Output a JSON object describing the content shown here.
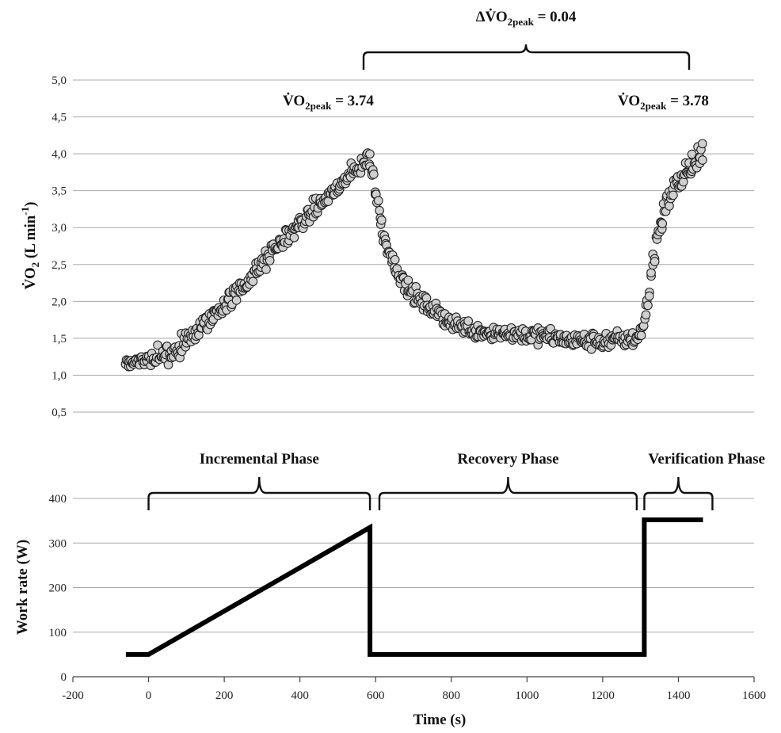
{
  "chart_data": [
    {
      "type": "scatter",
      "ylabel_main": "V̇O",
      "ylabel_sub": "2",
      "ylabel_unit": " (L min",
      "ylabel_exp": "-1",
      "ylabel_close": ")",
      "xlim": [
        -200,
        1600
      ],
      "ylim": [
        0.5,
        5.0
      ],
      "y_ticks": [
        0.5,
        1.0,
        1.5,
        2.0,
        2.5,
        3.0,
        3.5,
        4.0,
        4.5,
        5.0
      ],
      "y_tick_labels": [
        "0,5",
        "1,0",
        "1,5",
        "2,0",
        "2,5",
        "3,0",
        "3,5",
        "4,0",
        "4,5",
        "5,0"
      ],
      "grid": true,
      "annotations": [
        {
          "main": "V̇O",
          "sub": "2peak",
          "rest": " = 3.74"
        },
        {
          "main": "V̇O",
          "sub": "2peak",
          "rest": " = 3.78"
        },
        {
          "main": "ΔV̇O",
          "sub": "2peak",
          "rest": " = 0.04"
        }
      ],
      "profile": [
        [
          -60,
          1.17
        ],
        [
          0,
          1.22
        ],
        [
          60,
          1.28
        ],
        [
          100,
          1.45
        ],
        [
          150,
          1.7
        ],
        [
          200,
          1.95
        ],
        [
          250,
          2.2
        ],
        [
          300,
          2.5
        ],
        [
          350,
          2.8
        ],
        [
          400,
          3.05
        ],
        [
          450,
          3.3
        ],
        [
          500,
          3.55
        ],
        [
          550,
          3.78
        ],
        [
          585,
          3.95
        ],
        [
          600,
          3.5
        ],
        [
          620,
          2.9
        ],
        [
          650,
          2.5
        ],
        [
          680,
          2.2
        ],
        [
          720,
          2.0
        ],
        [
          760,
          1.85
        ],
        [
          800,
          1.72
        ],
        [
          850,
          1.62
        ],
        [
          900,
          1.58
        ],
        [
          950,
          1.57
        ],
        [
          1000,
          1.55
        ],
        [
          1050,
          1.52
        ],
        [
          1100,
          1.48
        ],
        [
          1150,
          1.46
        ],
        [
          1200,
          1.46
        ],
        [
          1250,
          1.48
        ],
        [
          1290,
          1.5
        ],
        [
          1310,
          1.72
        ],
        [
          1325,
          2.2
        ],
        [
          1340,
          2.8
        ],
        [
          1360,
          3.2
        ],
        [
          1380,
          3.45
        ],
        [
          1400,
          3.6
        ],
        [
          1420,
          3.75
        ],
        [
          1440,
          3.85
        ],
        [
          1465,
          3.95
        ]
      ]
    },
    {
      "type": "line",
      "xlabel": "Time (s)",
      "ylabel": "Work rate (W)",
      "xlim": [
        -200,
        1600
      ],
      "ylim": [
        0,
        400
      ],
      "x_ticks": [
        -200,
        0,
        200,
        400,
        600,
        800,
        1000,
        1200,
        1400,
        1600
      ],
      "x_tick_labels": [
        "-200",
        "0",
        "200",
        "400",
        "600",
        "800",
        "1000",
        "1200",
        "1400",
        "1600"
      ],
      "y_ticks": [
        0,
        100,
        200,
        300,
        400
      ],
      "y_tick_labels": [
        "0",
        "100",
        "200",
        "300",
        "400"
      ],
      "grid": true,
      "series": [
        {
          "x": [
            -60,
            0,
            585,
            585,
            1310,
            1310,
            1465
          ],
          "y": [
            50,
            50,
            335,
            50,
            50,
            352,
            352
          ]
        }
      ],
      "phases": [
        {
          "label": "Incremental Phase",
          "x_start": 0,
          "x_end": 585
        },
        {
          "label": "Recovery Phase",
          "x_start": 610,
          "x_end": 1290
        },
        {
          "label": "Verification Phase",
          "x_start": 1310,
          "x_end": 1490
        }
      ]
    }
  ]
}
